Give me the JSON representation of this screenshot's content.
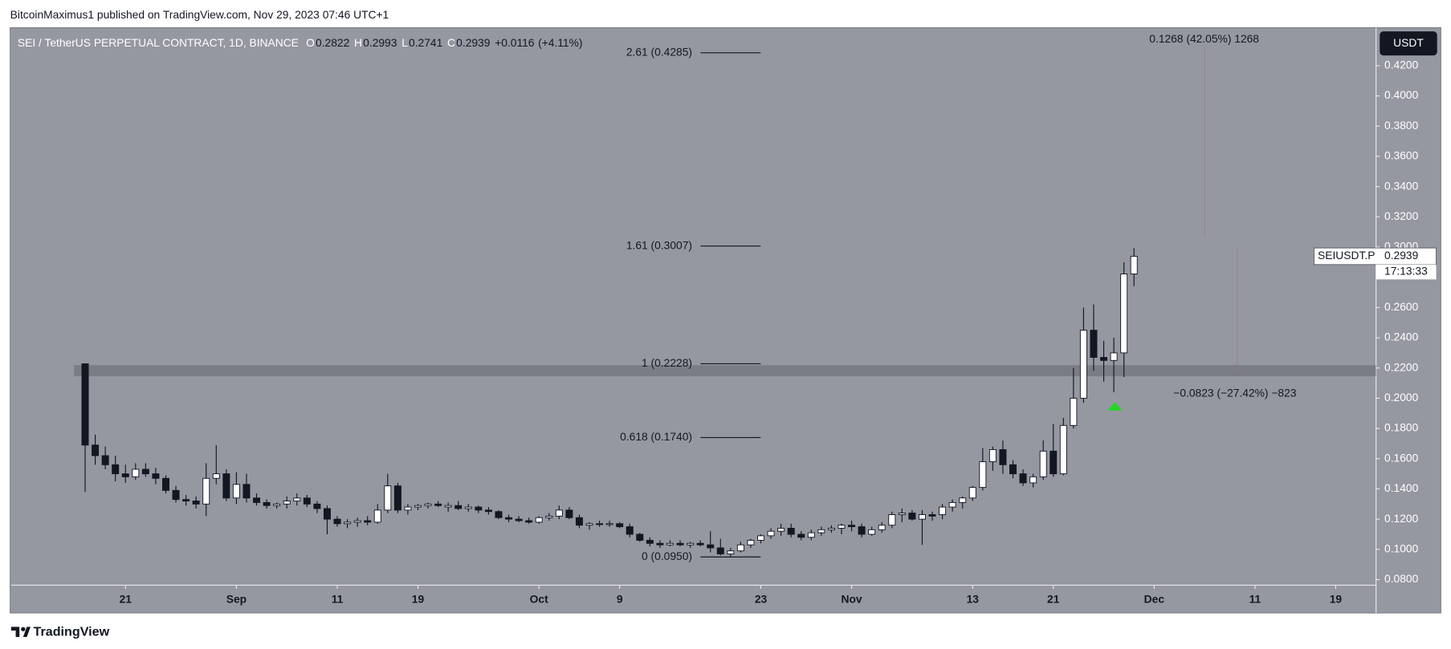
{
  "header": {
    "publisher": "BitcoinMaximus1 published on TradingView.com, Nov 29, 2023 07:46 UTC+1"
  },
  "chart_data": {
    "type": "candlestick",
    "title": "SEI / TetherUS PERPETUAL CONTRACT, 1D, BINANCE",
    "ohlc_legend": [
      {
        "label": "O",
        "value": 0.2822
      },
      {
        "label": "H",
        "value": 0.2993
      },
      {
        "label": "L",
        "value": 0.2741
      },
      {
        "label": "C",
        "value": 0.2939
      }
    ],
    "change": "+0.0116",
    "change_pct": "(+4.11%)",
    "currency": "USDT",
    "open": [
      0.2228,
      0.169,
      0.162,
      0.156,
      0.15,
      0.148,
      0.153,
      0.15,
      0.147,
      0.139,
      0.133,
      0.132,
      0.13,
      0.147,
      0.15,
      0.134,
      0.143,
      0.134,
      0.131,
      0.129,
      0.13,
      0.132,
      0.134,
      0.13,
      0.127,
      0.12,
      0.117,
      0.118,
      0.119,
      0.118,
      0.126,
      0.142,
      0.126,
      0.128,
      0.129,
      0.13,
      0.128,
      0.129,
      0.127,
      0.128,
      0.126,
      0.125,
      0.121,
      0.12,
      0.119,
      0.118,
      0.121,
      0.122,
      0.126,
      0.121,
      0.116,
      0.117,
      0.1165,
      0.117,
      0.115,
      0.11,
      0.106,
      0.104,
      0.103,
      0.104,
      0.103,
      0.104,
      0.103,
      0.101,
      0.097,
      0.099,
      0.103,
      0.106,
      0.109,
      0.112,
      0.114,
      0.11,
      0.108,
      0.111,
      0.113,
      0.114,
      0.116,
      0.115,
      0.11,
      0.113,
      0.116,
      0.123,
      0.124,
      0.12,
      0.123,
      0.123,
      0.128,
      0.131,
      0.134,
      0.141,
      0.158,
      0.166,
      0.156,
      0.15,
      0.144,
      0.148,
      0.165,
      0.15,
      0.182,
      0.2,
      0.245,
      0.227,
      0.225,
      0.23,
      0.2822
    ],
    "high": [
      0.2228,
      0.176,
      0.168,
      0.162,
      0.156,
      0.157,
      0.157,
      0.154,
      0.149,
      0.142,
      0.136,
      0.135,
      0.157,
      0.169,
      0.153,
      0.151,
      0.15,
      0.137,
      0.133,
      0.131,
      0.135,
      0.137,
      0.136,
      0.132,
      0.129,
      0.122,
      0.12,
      0.121,
      0.122,
      0.13,
      0.15,
      0.144,
      0.13,
      0.13,
      0.131,
      0.132,
      0.131,
      0.132,
      0.13,
      0.129,
      0.128,
      0.126,
      0.123,
      0.122,
      0.121,
      0.122,
      0.124,
      0.129,
      0.128,
      0.123,
      0.118,
      0.119,
      0.119,
      0.118,
      0.117,
      0.111,
      0.108,
      0.106,
      0.106,
      0.106,
      0.105,
      0.106,
      0.112,
      0.107,
      0.101,
      0.105,
      0.107,
      0.11,
      0.114,
      0.117,
      0.117,
      0.112,
      0.113,
      0.115,
      0.116,
      0.117,
      0.119,
      0.117,
      0.115,
      0.118,
      0.125,
      0.127,
      0.126,
      0.126,
      0.125,
      0.13,
      0.133,
      0.135,
      0.142,
      0.167,
      0.168,
      0.172,
      0.159,
      0.153,
      0.15,
      0.172,
      0.183,
      0.187,
      0.22,
      0.26,
      0.262,
      0.238,
      0.24,
      0.29,
      0.2993
    ],
    "low": [
      0.138,
      0.156,
      0.153,
      0.145,
      0.144,
      0.146,
      0.148,
      0.143,
      0.137,
      0.131,
      0.129,
      0.127,
      0.122,
      0.143,
      0.132,
      0.13,
      0.131,
      0.129,
      0.127,
      0.127,
      0.127,
      0.129,
      0.128,
      0.124,
      0.11,
      0.115,
      0.114,
      0.115,
      0.116,
      0.117,
      0.124,
      0.124,
      0.123,
      0.126,
      0.127,
      0.128,
      0.125,
      0.126,
      0.125,
      0.124,
      0.123,
      0.12,
      0.118,
      0.118,
      0.117,
      0.117,
      0.119,
      0.12,
      0.12,
      0.114,
      0.113,
      0.115,
      0.115,
      0.114,
      0.108,
      0.105,
      0.102,
      0.101,
      0.102,
      0.102,
      0.101,
      0.102,
      0.098,
      0.096,
      0.095,
      0.098,
      0.101,
      0.104,
      0.107,
      0.109,
      0.108,
      0.106,
      0.106,
      0.109,
      0.111,
      0.11,
      0.112,
      0.108,
      0.109,
      0.111,
      0.114,
      0.118,
      0.119,
      0.103,
      0.119,
      0.12,
      0.125,
      0.127,
      0.132,
      0.139,
      0.152,
      0.15,
      0.147,
      0.142,
      0.141,
      0.146,
      0.148,
      0.149,
      0.18,
      0.197,
      0.218,
      0.211,
      0.204,
      0.214,
      0.2741
    ],
    "close": [
      0.169,
      0.162,
      0.156,
      0.15,
      0.148,
      0.153,
      0.15,
      0.147,
      0.139,
      0.133,
      0.132,
      0.13,
      0.147,
      0.15,
      0.134,
      0.143,
      0.134,
      0.131,
      0.129,
      0.13,
      0.132,
      0.134,
      0.13,
      0.127,
      0.12,
      0.117,
      0.118,
      0.119,
      0.118,
      0.126,
      0.142,
      0.126,
      0.128,
      0.129,
      0.13,
      0.129,
      0.129,
      0.127,
      0.128,
      0.126,
      0.125,
      0.121,
      0.12,
      0.119,
      0.118,
      0.121,
      0.122,
      0.126,
      0.121,
      0.116,
      0.117,
      0.1165,
      0.117,
      0.115,
      0.11,
      0.106,
      0.104,
      0.103,
      0.104,
      0.103,
      0.104,
      0.103,
      0.101,
      0.097,
      0.099,
      0.103,
      0.106,
      0.109,
      0.112,
      0.114,
      0.11,
      0.108,
      0.111,
      0.113,
      0.114,
      0.116,
      0.115,
      0.11,
      0.113,
      0.116,
      0.123,
      0.124,
      0.12,
      0.123,
      0.122,
      0.128,
      0.131,
      0.134,
      0.141,
      0.158,
      0.166,
      0.156,
      0.15,
      0.144,
      0.148,
      0.165,
      0.15,
      0.182,
      0.2,
      0.245,
      0.227,
      0.225,
      0.23,
      0.2822,
      0.2939
    ],
    "up_color": "#ffffff",
    "down_color": "#131722",
    "background": "#9598a1",
    "xlim": [
      -7.34,
      128
    ],
    "xticks": [
      {
        "value": 4,
        "label": "21"
      },
      {
        "value": 15,
        "label": "Sep"
      },
      {
        "value": 25,
        "label": "11"
      },
      {
        "value": 33,
        "label": "19"
      },
      {
        "value": 45,
        "label": "Oct"
      },
      {
        "value": 53,
        "label": "9"
      },
      {
        "value": 67,
        "label": "23"
      },
      {
        "value": 76,
        "label": "Nov"
      },
      {
        "value": 88,
        "label": "13"
      },
      {
        "value": 96,
        "label": "21"
      },
      {
        "value": 106,
        "label": "Dec"
      },
      {
        "value": 116,
        "label": "11"
      },
      {
        "value": 124,
        "label": "19"
      }
    ],
    "ylim": [
      0.0763,
      0.4451
    ],
    "yticks": [
      {
        "value": 0.08,
        "label": "0.0800"
      },
      {
        "value": 0.1,
        "label": "0.1000"
      },
      {
        "value": 0.12,
        "label": "0.1200"
      },
      {
        "value": 0.14,
        "label": "0.1400"
      },
      {
        "value": 0.16,
        "label": "0.1600"
      },
      {
        "value": 0.18,
        "label": "0.1800"
      },
      {
        "value": 0.2,
        "label": "0.2000"
      },
      {
        "value": 0.22,
        "label": "0.2200"
      },
      {
        "value": 0.24,
        "label": "0.2400"
      },
      {
        "value": 0.26,
        "label": "0.2600"
      },
      {
        "value": 0.3,
        "label": "0.3000"
      },
      {
        "value": 0.32,
        "label": "0.3200"
      },
      {
        "value": 0.34,
        "label": "0.3400"
      },
      {
        "value": 0.36,
        "label": "0.3600"
      },
      {
        "value": 0.38,
        "label": "0.3800"
      },
      {
        "value": 0.4,
        "label": "0.4000"
      },
      {
        "value": 0.42,
        "label": "0.4200"
      }
    ],
    "zone": [
      0.2145,
      0.2219
    ],
    "fib_levels": [
      {
        "label": "2.61 (0.4285)",
        "value": 0.4285
      },
      {
        "label": "1.61 (0.3007)",
        "value": 0.3007
      },
      {
        "label": "1 (0.2228)",
        "value": 0.2228
      },
      {
        "label": "0.618 (0.1740)",
        "value": 0.174
      },
      {
        "label": "0 (0.0950)",
        "value": 0.095
      }
    ],
    "annotations": [
      "0.1268 (42.05%) 1268",
      "−0.0823 (−27.42%) −823"
    ],
    "last_price": {
      "symbol": "SEIUSDT.P",
      "value": 0.2939,
      "countdown": "17:13:33"
    }
  },
  "footer": {
    "brand": "TradingView"
  }
}
